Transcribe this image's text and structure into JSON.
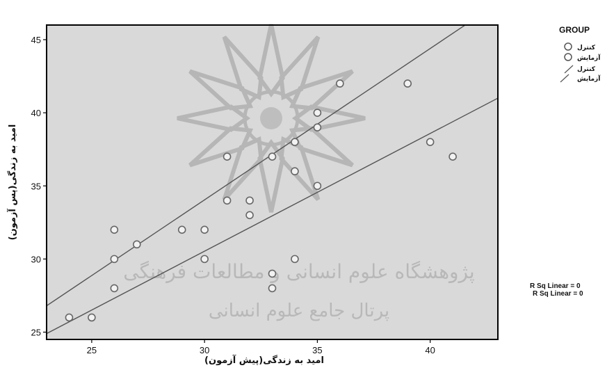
{
  "chart_data": {
    "type": "scatter",
    "x_ticks": [
      "25",
      "30",
      "35",
      "40"
    ],
    "y_ticks": [
      "25",
      "30",
      "35",
      "40",
      "45"
    ],
    "xlabel": "امید به زندگی(پیش آزمون)",
    "ylabel": "امید به زندگی(پس آزمون)",
    "xlim": [
      23,
      43
    ],
    "ylim": [
      24.5,
      46
    ],
    "grid": false,
    "legend_position": "right",
    "legend": {
      "title": "GROUP",
      "marker_entries": [
        "کنترل",
        "آزمایش"
      ],
      "line_entries": [
        "کنترل",
        "آزمایش"
      ]
    },
    "fit_lines": [
      {
        "name": "کنترل",
        "x": [
          23,
          43
        ],
        "y": [
          24.9,
          41.0
        ]
      },
      {
        "name": "آزمایش",
        "x": [
          23,
          43
        ],
        "y": [
          26.8,
          47.5
        ]
      }
    ],
    "points": [
      {
        "x": 24,
        "y": 26
      },
      {
        "x": 25,
        "y": 26
      },
      {
        "x": 26,
        "y": 28
      },
      {
        "x": 26,
        "y": 30
      },
      {
        "x": 26,
        "y": 32
      },
      {
        "x": 27,
        "y": 31
      },
      {
        "x": 29,
        "y": 32
      },
      {
        "x": 30,
        "y": 32
      },
      {
        "x": 30,
        "y": 30
      },
      {
        "x": 31,
        "y": 34
      },
      {
        "x": 31,
        "y": 37
      },
      {
        "x": 32,
        "y": 33
      },
      {
        "x": 32,
        "y": 34
      },
      {
        "x": 33,
        "y": 37
      },
      {
        "x": 33,
        "y": 29
      },
      {
        "x": 33,
        "y": 28
      },
      {
        "x": 34,
        "y": 38
      },
      {
        "x": 34,
        "y": 36
      },
      {
        "x": 34,
        "y": 30
      },
      {
        "x": 35,
        "y": 40
      },
      {
        "x": 35,
        "y": 39
      },
      {
        "x": 35,
        "y": 35
      },
      {
        "x": 36,
        "y": 42
      },
      {
        "x": 39,
        "y": 42
      },
      {
        "x": 40,
        "y": 38
      },
      {
        "x": 41,
        "y": 37
      }
    ],
    "rsq_labels": [
      "R Sq Linear = 0",
      "R Sq Linear = 0"
    ],
    "colors": {
      "plot_background": "#d9d9d9",
      "marker_stroke": "#666666",
      "line": "#555555",
      "frame": "#000000"
    }
  },
  "watermark": {
    "line1": "پژوهشگاه علوم انسانی و مطالعات فرهنگی",
    "line2": "پرتال جامع علوم انسانی"
  }
}
